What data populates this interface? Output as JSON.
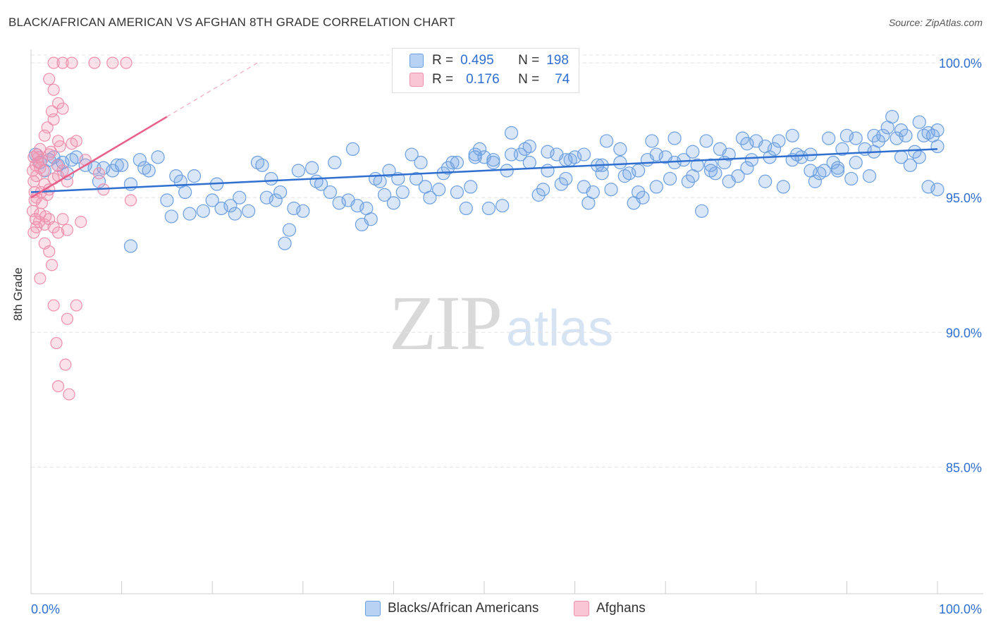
{
  "header": {
    "title": "BLACK/AFRICAN AMERICAN VS AFGHAN 8TH GRADE CORRELATION CHART",
    "source": "Source: ZipAtlas.com"
  },
  "watermark": {
    "zip": "ZIP",
    "atlas": "atlas"
  },
  "legend": {
    "rows": [
      {
        "r_label": "R =",
        "r_value": "0.495",
        "n_label": "N =",
        "n_value": "198",
        "color": "#6a9fe0"
      },
      {
        "r_label": "R =",
        "r_value": "0.176",
        "n_label": "N =",
        "n_value": "74",
        "color": "#ef8fab"
      }
    ]
  },
  "bottom_legend": {
    "items": [
      {
        "label": "Blacks/African Americans",
        "color": "#6a9fe0"
      },
      {
        "label": "Afghans",
        "color": "#ef8fab"
      }
    ]
  },
  "chart_data": {
    "type": "scatter",
    "title": "BLACK/AFRICAN AMERICAN VS AFGHAN 8TH GRADE CORRELATION CHART",
    "xlabel": "",
    "ylabel": "8th Grade",
    "xlim": [
      0,
      100
    ],
    "ylim": [
      80.3,
      100.5
    ],
    "x_tick_labels": [
      "0.0%",
      "100.0%"
    ],
    "y_ticks": [
      85,
      90,
      95,
      100
    ],
    "y_tick_labels": [
      "85.0%",
      "90.0%",
      "95.0%",
      "100.0%"
    ],
    "grid": true,
    "legend_position": "top-center",
    "series": [
      {
        "name": "Blacks/African Americans",
        "color": "#6a9fe0",
        "r": 0.495,
        "n": 198,
        "trend": {
          "x": [
            0,
            100
          ],
          "y": [
            95.2,
            96.8
          ]
        },
        "points": [
          [
            0.5,
            96.6
          ],
          [
            1,
            96.3
          ],
          [
            1.5,
            96.0
          ],
          [
            2,
            96.4
          ],
          [
            2.5,
            96.5
          ],
          [
            3,
            96.2
          ],
          [
            3.5,
            96.3
          ],
          [
            4,
            95.9
          ],
          [
            4.5,
            96.4
          ],
          [
            5,
            96.5
          ],
          [
            6,
            96.2
          ],
          [
            7,
            96.1
          ],
          [
            7.5,
            95.6
          ],
          [
            8,
            96.1
          ],
          [
            9,
            96.0
          ],
          [
            9.5,
            96.2
          ],
          [
            10,
            96.2
          ],
          [
            11,
            95.5
          ],
          [
            12,
            96.4
          ],
          [
            12.5,
            96.1
          ],
          [
            11,
            93.2
          ],
          [
            13,
            96.0
          ],
          [
            14,
            96.5
          ],
          [
            15,
            94.9
          ],
          [
            15.5,
            94.3
          ],
          [
            16,
            95.8
          ],
          [
            16.5,
            95.6
          ],
          [
            17,
            95.2
          ],
          [
            17.5,
            94.4
          ],
          [
            18,
            95.8
          ],
          [
            19,
            94.5
          ],
          [
            20,
            94.9
          ],
          [
            20.5,
            95.5
          ],
          [
            21,
            94.6
          ],
          [
            22,
            94.7
          ],
          [
            22.5,
            94.4
          ],
          [
            23,
            95.0
          ],
          [
            24,
            94.5
          ],
          [
            25,
            96.3
          ],
          [
            25.5,
            96.2
          ],
          [
            26,
            95.0
          ],
          [
            26.5,
            95.7
          ],
          [
            27,
            94.9
          ],
          [
            27.5,
            95.2
          ],
          [
            28,
            93.3
          ],
          [
            28.5,
            93.8
          ],
          [
            29,
            94.6
          ],
          [
            29.5,
            96.0
          ],
          [
            30,
            94.5
          ],
          [
            31,
            96.1
          ],
          [
            31.5,
            95.6
          ],
          [
            32,
            95.5
          ],
          [
            33,
            95.2
          ],
          [
            33.5,
            96.3
          ],
          [
            34,
            94.8
          ],
          [
            35,
            94.9
          ],
          [
            35.5,
            96.8
          ],
          [
            36,
            94.7
          ],
          [
            36.5,
            94.0
          ],
          [
            37,
            94.6
          ],
          [
            37.5,
            94.2
          ],
          [
            38,
            95.7
          ],
          [
            38.5,
            95.6
          ],
          [
            39,
            95.1
          ],
          [
            39.5,
            96.0
          ],
          [
            40,
            94.8
          ],
          [
            40.5,
            95.7
          ],
          [
            41,
            95.2
          ],
          [
            42,
            96.6
          ],
          [
            42.5,
            95.7
          ],
          [
            43,
            96.3
          ],
          [
            43.5,
            95.4
          ],
          [
            44,
            95.0
          ],
          [
            45,
            95.3
          ],
          [
            45.5,
            95.9
          ],
          [
            46,
            96.1
          ],
          [
            46.5,
            96.3
          ],
          [
            47,
            95.2
          ],
          [
            48,
            94.6
          ],
          [
            48.5,
            95.4
          ],
          [
            49,
            96.6
          ],
          [
            49.5,
            96.8
          ],
          [
            50,
            96.5
          ],
          [
            50.5,
            94.6
          ],
          [
            51,
            96.4
          ],
          [
            52,
            94.7
          ],
          [
            52.5,
            96.0
          ],
          [
            53,
            97.4
          ],
          [
            54,
            96.6
          ],
          [
            54.5,
            96.8
          ],
          [
            55,
            96.3
          ],
          [
            56,
            95.1
          ],
          [
            56.5,
            95.3
          ],
          [
            57,
            96.0
          ],
          [
            58,
            96.6
          ],
          [
            58.5,
            95.5
          ],
          [
            59,
            95.7
          ],
          [
            59.5,
            96.4
          ],
          [
            60,
            96.5
          ],
          [
            61,
            95.4
          ],
          [
            61.5,
            94.8
          ],
          [
            62,
            95.2
          ],
          [
            62.5,
            96.2
          ],
          [
            63,
            95.9
          ],
          [
            63.5,
            97.1
          ],
          [
            64,
            95.3
          ],
          [
            65,
            96.3
          ],
          [
            65.5,
            95.8
          ],
          [
            66,
            95.9
          ],
          [
            66.5,
            94.8
          ],
          [
            67,
            95.2
          ],
          [
            67.5,
            95.0
          ],
          [
            68,
            96.4
          ],
          [
            68.5,
            97.1
          ],
          [
            69,
            95.4
          ],
          [
            70,
            96.5
          ],
          [
            70.5,
            95.7
          ],
          [
            71,
            97.2
          ],
          [
            72,
            96.4
          ],
          [
            72.5,
            95.6
          ],
          [
            73,
            96.7
          ],
          [
            73.5,
            96.2
          ],
          [
            74,
            94.5
          ],
          [
            74.5,
            97.1
          ],
          [
            75,
            96.2
          ],
          [
            75.5,
            95.9
          ],
          [
            76,
            96.8
          ],
          [
            76.5,
            96.3
          ],
          [
            77,
            95.6
          ],
          [
            78,
            95.8
          ],
          [
            78.5,
            97.2
          ],
          [
            79,
            96.1
          ],
          [
            79.5,
            96.4
          ],
          [
            80,
            97.1
          ],
          [
            81,
            95.6
          ],
          [
            81.5,
            96.5
          ],
          [
            82,
            96.8
          ],
          [
            82.5,
            97.1
          ],
          [
            83,
            95.4
          ],
          [
            84,
            97.3
          ],
          [
            84.5,
            96.6
          ],
          [
            85,
            96.5
          ],
          [
            86,
            96.0
          ],
          [
            86.5,
            95.6
          ],
          [
            87,
            95.9
          ],
          [
            87.5,
            96.0
          ],
          [
            88,
            97.2
          ],
          [
            88.5,
            96.3
          ],
          [
            89,
            96.1
          ],
          [
            89.5,
            96.8
          ],
          [
            90,
            97.3
          ],
          [
            90.5,
            95.7
          ],
          [
            91,
            96.3
          ],
          [
            92,
            96.8
          ],
          [
            92.5,
            95.8
          ],
          [
            93,
            97.3
          ],
          [
            93.5,
            97.1
          ],
          [
            94,
            97.3
          ],
          [
            94.5,
            97.6
          ],
          [
            95,
            98.0
          ],
          [
            95.5,
            97.2
          ],
          [
            96,
            97.5
          ],
          [
            96.5,
            97.3
          ],
          [
            97,
            96.2
          ],
          [
            97.5,
            96.7
          ],
          [
            98,
            97.8
          ],
          [
            98.5,
            97.3
          ],
          [
            99,
            97.4
          ],
          [
            99.5,
            97.3
          ],
          [
            100,
            97.5
          ],
          [
            100,
            96.9
          ],
          [
            98,
            96.5
          ],
          [
            99,
            95.4
          ],
          [
            100,
            95.3
          ],
          [
            96,
            96.5
          ],
          [
            93,
            96.7
          ],
          [
            91,
            97.2
          ],
          [
            89,
            96.0
          ],
          [
            86,
            96.6
          ],
          [
            84,
            96.4
          ],
          [
            81,
            96.9
          ],
          [
            79,
            97.0
          ],
          [
            77,
            96.6
          ],
          [
            75,
            96.0
          ],
          [
            73,
            95.8
          ],
          [
            71,
            96.3
          ],
          [
            69,
            96.6
          ],
          [
            67,
            96.0
          ],
          [
            65,
            96.8
          ],
          [
            63,
            96.2
          ],
          [
            61,
            96.6
          ],
          [
            59,
            96.4
          ],
          [
            57,
            96.7
          ],
          [
            55,
            96.9
          ],
          [
            53,
            96.6
          ],
          [
            51,
            96.3
          ],
          [
            49,
            96.5
          ],
          [
            47,
            96.3
          ]
        ]
      },
      {
        "name": "Afghans",
        "color": "#ef8fab",
        "r": 0.176,
        "n": 74,
        "trend": {
          "x": [
            0,
            15
          ],
          "y": [
            95.0,
            98.0
          ]
        },
        "trend_dashed": {
          "x": [
            15,
            25
          ],
          "y": [
            98.0,
            100.0
          ]
        },
        "points": [
          [
            2.5,
            100.0
          ],
          [
            3.5,
            100.0
          ],
          [
            4.5,
            100.0
          ],
          [
            7,
            100.0
          ],
          [
            9,
            100.0
          ],
          [
            10.5,
            100.0
          ],
          [
            2,
            99.4
          ],
          [
            2.5,
            99.0
          ],
          [
            3,
            98.5
          ],
          [
            3.5,
            98.3
          ],
          [
            2.5,
            97.9
          ],
          [
            2.3,
            98.2
          ],
          [
            1.8,
            97.6
          ],
          [
            3,
            97.1
          ],
          [
            3.2,
            96.9
          ],
          [
            1.5,
            97.3
          ],
          [
            2,
            96.6
          ],
          [
            1,
            96.8
          ],
          [
            0.8,
            96.5
          ],
          [
            0.5,
            96.2
          ],
          [
            0.3,
            96.5
          ],
          [
            0.2,
            96.0
          ],
          [
            0.6,
            95.8
          ],
          [
            1,
            96.1
          ],
          [
            1.5,
            95.5
          ],
          [
            2,
            95.3
          ],
          [
            2.5,
            95.7
          ],
          [
            3,
            95.8
          ],
          [
            3.5,
            96.0
          ],
          [
            4,
            95.6
          ],
          [
            0.4,
            95.2
          ],
          [
            0.6,
            95.0
          ],
          [
            1.2,
            94.8
          ],
          [
            1.8,
            95.1
          ],
          [
            0.2,
            94.5
          ],
          [
            0.5,
            94.2
          ],
          [
            1,
            94.4
          ],
          [
            1.5,
            94.0
          ],
          [
            2,
            94.2
          ],
          [
            2.5,
            93.9
          ],
          [
            3,
            93.7
          ],
          [
            3.5,
            94.2
          ],
          [
            4,
            93.8
          ],
          [
            0.3,
            93.7
          ],
          [
            1.5,
            93.3
          ],
          [
            2,
            93.0
          ],
          [
            2.3,
            92.5
          ],
          [
            1,
            92.0
          ],
          [
            2.5,
            91.0
          ],
          [
            4,
            90.5
          ],
          [
            5,
            91.0
          ],
          [
            2.8,
            89.6
          ],
          [
            3.8,
            88.8
          ],
          [
            3,
            88.0
          ],
          [
            4.2,
            87.7
          ],
          [
            0.8,
            96.3
          ],
          [
            1.2,
            96.4
          ],
          [
            2.2,
            96.7
          ],
          [
            0.3,
            95.6
          ],
          [
            0.9,
            94.1
          ],
          [
            1.6,
            94.3
          ],
          [
            5.5,
            94.1
          ],
          [
            6,
            96.4
          ],
          [
            7.5,
            95.9
          ],
          [
            8,
            95.3
          ],
          [
            11,
            94.9
          ],
          [
            4.5,
            97.0
          ],
          [
            5,
            97.1
          ],
          [
            0.6,
            93.9
          ],
          [
            1.4,
            96.0
          ],
          [
            2.9,
            96.2
          ],
          [
            1.1,
            95.2
          ],
          [
            0.4,
            94.9
          ],
          [
            0.7,
            96.6
          ]
        ]
      }
    ]
  }
}
